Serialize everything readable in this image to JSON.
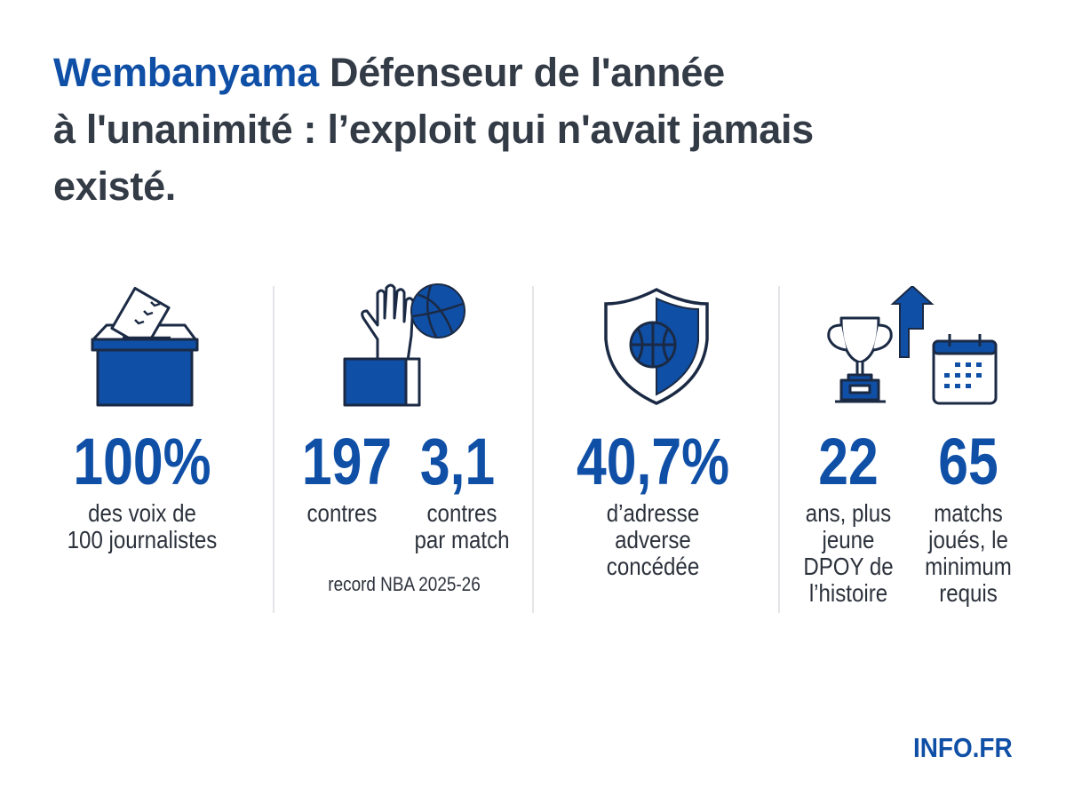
{
  "title": {
    "highlight": "Wembanyama",
    "rest_line1": " Défenseur de l'année",
    "line2": "à l'unanimité  : l’exploit qui n'avait jamais",
    "line3": "existé."
  },
  "colors": {
    "accent": "#0f4fa6",
    "navy": "#1b2a44",
    "text": "#2c323c",
    "divider": "#e3e5e8"
  },
  "stats": [
    {
      "icon": "ballot-box-icon",
      "value": "100%",
      "label": [
        "des voix de",
        "100 journalistes"
      ]
    },
    {
      "icon": "hand-block-basketball-icon",
      "items": [
        {
          "value": "197",
          "label": [
            "contres"
          ]
        },
        {
          "value": "3,1",
          "label": [
            "contres",
            "par match"
          ]
        }
      ],
      "note": "record NBA 2025-26"
    },
    {
      "icon": "shield-basketball-icon",
      "value": "40,7%",
      "label": [
        "d’adresse",
        "adverse",
        "concédée"
      ]
    },
    {
      "icon": "trophy-arrow-calendar-icon",
      "items": [
        {
          "value": "22",
          "label": [
            "ans, plus",
            "jeune",
            "DPOY de",
            "l’histoire"
          ]
        },
        {
          "value": "65",
          "label": [
            "matchs",
            "joués, le",
            "minimum",
            "requis"
          ]
        }
      ]
    }
  ],
  "brand": "INFO.FR"
}
